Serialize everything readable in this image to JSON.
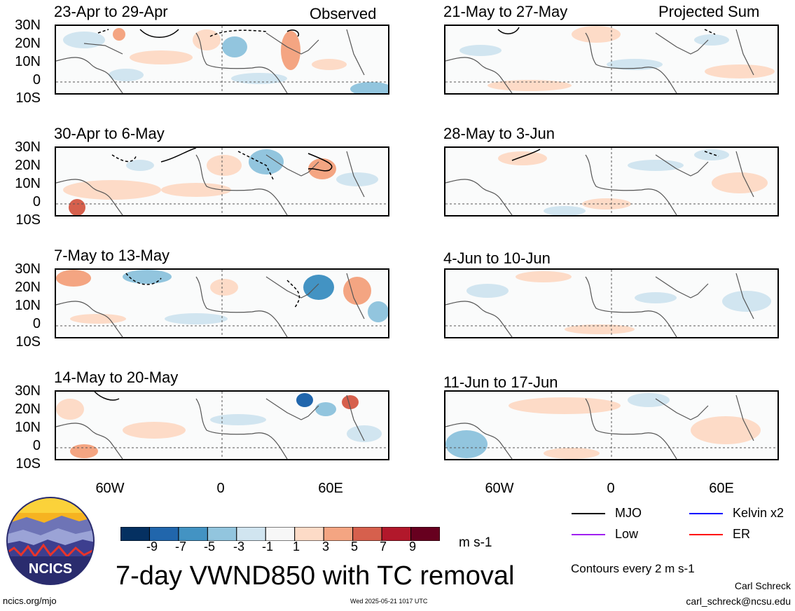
{
  "column_labels": {
    "observed": "Observed",
    "projected": "Projected Sum"
  },
  "lat_labels": [
    "30N",
    "20N",
    "10N",
    "0",
    "10S"
  ],
  "lon_labels": [
    "60W",
    "0",
    "60E"
  ],
  "panels": {
    "observed": [
      {
        "title": "23-Apr to 29-Apr"
      },
      {
        "title": "30-Apr to 6-May"
      },
      {
        "title": "7-May to 13-May"
      },
      {
        "title": "14-May to 20-May"
      }
    ],
    "projected": [
      {
        "title": "21-May to 27-May"
      },
      {
        "title": "28-May to 3-Jun"
      },
      {
        "title": "4-Jun to 10-Jun"
      },
      {
        "title": "11-Jun to 17-Jun"
      }
    ]
  },
  "colorbar": {
    "ticks": [
      "-9",
      "-7",
      "-5",
      "-3",
      "-1",
      "1",
      "3",
      "5",
      "7",
      "9"
    ],
    "colors": [
      "#053061",
      "#2166ac",
      "#4393c3",
      "#92c5de",
      "#d1e5f0",
      "#f7f7f7",
      "#fddbc7",
      "#f4a582",
      "#d6604d",
      "#b2182b",
      "#67001f"
    ],
    "units": "m s-1"
  },
  "title": "7-day VWND850 with TC removal",
  "legend": {
    "items": [
      {
        "label": "MJO",
        "color": "#000000"
      },
      {
        "label": "Kelvin x2",
        "color": "#0000ff"
      },
      {
        "label": "Low",
        "color": "#a020f0"
      },
      {
        "label": "ER",
        "color": "#ff0000"
      }
    ],
    "contour_note": "Contours every 2 m s-1"
  },
  "logo_text": "NCICS",
  "footer": {
    "url": "ncics.org/mjo",
    "timestamp": "Wed 2025-05-21 1017 UTC",
    "author": "Carl Schreck",
    "email": "carl_schreck@ncsu.edu"
  }
}
